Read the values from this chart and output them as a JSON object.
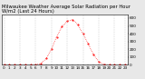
{
  "title": "Milwaukee Weather Average Solar Radiation per Hour W/m2 (Last 24 Hours)",
  "hours": [
    0,
    1,
    2,
    3,
    4,
    5,
    6,
    7,
    8,
    9,
    10,
    11,
    12,
    13,
    14,
    15,
    16,
    17,
    18,
    19,
    20,
    21,
    22,
    23
  ],
  "values": [
    0,
    0,
    0,
    0,
    0,
    0,
    1,
    15,
    80,
    200,
    360,
    490,
    560,
    580,
    520,
    400,
    270,
    130,
    40,
    5,
    0,
    0,
    0,
    0
  ],
  "line_color": "#ff0000",
  "bg_color": "#e8e8e8",
  "plot_bg": "#ffffff",
  "ylim": [
    0,
    650
  ],
  "yticks": [
    0,
    100,
    200,
    300,
    400,
    500,
    600
  ],
  "grid_hours": [
    0,
    3,
    6,
    9,
    12,
    15,
    18,
    21,
    23
  ],
  "title_fontsize": 3.8,
  "tick_fontsize": 3.0
}
